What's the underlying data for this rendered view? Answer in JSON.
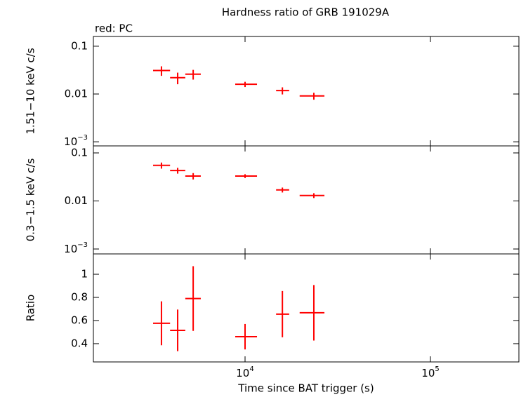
{
  "chart_data": [
    {
      "type": "scatter",
      "title": "Hardness ratio of GRB 191029A",
      "subtitle": "red: PC",
      "ylabel": "1.51−10 keV c/s",
      "log_x": true,
      "log_y": true,
      "xlim": [
        1520,
        300000
      ],
      "ylim": [
        0.00082,
        0.16
      ],
      "yticks": [
        0.1,
        0.01,
        {
          "value": 0.001,
          "label": "10",
          "exponent": "−3"
        }
      ],
      "series": [
        {
          "color": "#ff0000",
          "x": [
            3540,
            4330,
            5250,
            10000,
            15900,
            23500
          ],
          "x_low": [
            3190,
            3940,
            4760,
            8850,
            14700,
            19700
          ],
          "x_high": [
            3940,
            4760,
            5770,
            11600,
            17300,
            26800
          ],
          "values": [
            0.031,
            0.022,
            0.026,
            0.016,
            0.0118,
            0.0091
          ],
          "yerr": [
            0.007,
            0.006,
            0.006,
            0.002,
            0.002,
            0.0015
          ]
        }
      ]
    },
    {
      "type": "scatter",
      "ylabel": "0.3−1.5 keV c/s",
      "log_x": true,
      "log_y": true,
      "xlim": [
        1520,
        300000
      ],
      "ylim": [
        0.00079,
        0.14
      ],
      "yticks": [
        0.1,
        0.01,
        {
          "value": 0.001,
          "label": "10",
          "exponent": "−3"
        }
      ],
      "series": [
        {
          "color": "#ff0000",
          "x": [
            3540,
            4330,
            5250,
            10000,
            15900,
            23500
          ],
          "x_low": [
            3190,
            3940,
            4760,
            8850,
            14700,
            19700
          ],
          "x_high": [
            3940,
            4760,
            5770,
            11600,
            17300,
            26800
          ],
          "values": [
            0.055,
            0.043,
            0.033,
            0.033,
            0.017,
            0.013
          ],
          "yerr": [
            0.008,
            0.006,
            0.005,
            0.003,
            0.002,
            0.0015
          ]
        }
      ]
    },
    {
      "type": "scatter",
      "ylabel": "Ratio",
      "xlabel": "Time since BAT trigger (s)",
      "log_x": true,
      "log_y": false,
      "xlim": [
        1520,
        300000
      ],
      "ylim": [
        0.242,
        1.176
      ],
      "yticks": [
        0.4,
        0.6,
        0.8,
        1
      ],
      "xticks": [
        {
          "value": 10000,
          "label": "10",
          "exponent": "4"
        },
        {
          "value": 100000,
          "label": "10",
          "exponent": "5"
        }
      ],
      "series": [
        {
          "color": "#ff0000",
          "x": [
            3540,
            4330,
            5250,
            10000,
            15900,
            23500
          ],
          "x_low": [
            3190,
            3940,
            4760,
            8850,
            14700,
            19700
          ],
          "x_high": [
            3940,
            4760,
            5770,
            11600,
            17300,
            26800
          ],
          "values": [
            0.576,
            0.515,
            0.79,
            0.46,
            0.655,
            0.667
          ],
          "yerr": [
            0.19,
            0.18,
            0.28,
            0.11,
            0.2,
            0.24
          ]
        }
      ]
    }
  ]
}
